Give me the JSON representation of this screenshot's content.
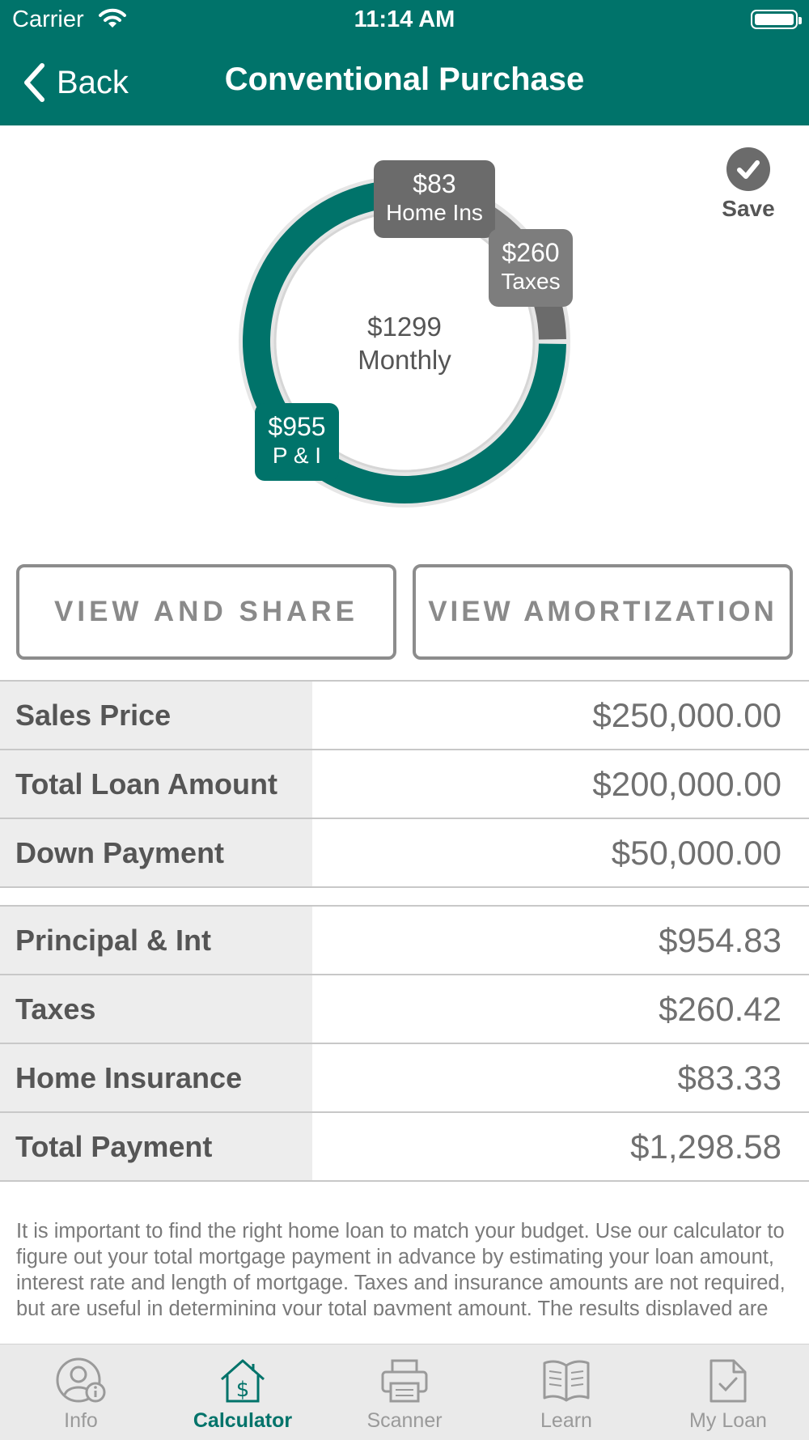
{
  "status_bar": {
    "carrier": "Carrier",
    "time": "11:14 AM"
  },
  "nav": {
    "back_label": "Back",
    "title": "Conventional Purchase"
  },
  "save": {
    "label": "Save"
  },
  "chart_data": {
    "type": "pie",
    "style": "donut",
    "center_amount": "$1299",
    "center_label": "Monthly",
    "slices": [
      {
        "label": "P & I",
        "display": "$955",
        "value": 954.83,
        "color": "#00736a"
      },
      {
        "label": "Taxes",
        "display": "$260",
        "value": 260.42,
        "color": "#7d7d7d"
      },
      {
        "label": "Home Ins",
        "display": "$83",
        "value": 83.33,
        "color": "#6b6b6b"
      }
    ]
  },
  "buttons": {
    "view_share": "VIEW AND SHARE",
    "view_amortization": "VIEW AMORTIZATION"
  },
  "loan_table": [
    {
      "label": "Sales Price",
      "value": "$250,000.00"
    },
    {
      "label": "Total Loan Amount",
      "value": "$200,000.00"
    },
    {
      "label": "Down Payment",
      "value": "$50,000.00"
    }
  ],
  "payment_table": [
    {
      "label": "Principal & Int",
      "value": "$954.83"
    },
    {
      "label": "Taxes",
      "value": "$260.42"
    },
    {
      "label": "Home Insurance",
      "value": "$83.33"
    },
    {
      "label": "Total Payment",
      "value": "$1,298.58"
    }
  ],
  "disclaimer": "It is important to find the right home loan to match your budget. Use our calculator to figure out your total mortgage payment in advance by estimating your loan amount, interest rate and length of mortgage. Taxes and insurance amounts are not required, but are useful in determining your total payment amount.  The results displayed are only estimates and cannot",
  "tabs": [
    {
      "label": "Info",
      "icon": "user-info-icon",
      "active": false
    },
    {
      "label": "Calculator",
      "icon": "house-dollar-icon",
      "active": true
    },
    {
      "label": "Scanner",
      "icon": "printer-icon",
      "active": false
    },
    {
      "label": "Learn",
      "icon": "open-book-icon",
      "active": false
    },
    {
      "label": "My Loan",
      "icon": "document-check-icon",
      "active": false
    }
  ],
  "colors": {
    "brand": "#00736a",
    "gray_dark": "#6b6b6b",
    "gray_mid": "#7d7d7d",
    "row_label_bg": "#ededed"
  }
}
